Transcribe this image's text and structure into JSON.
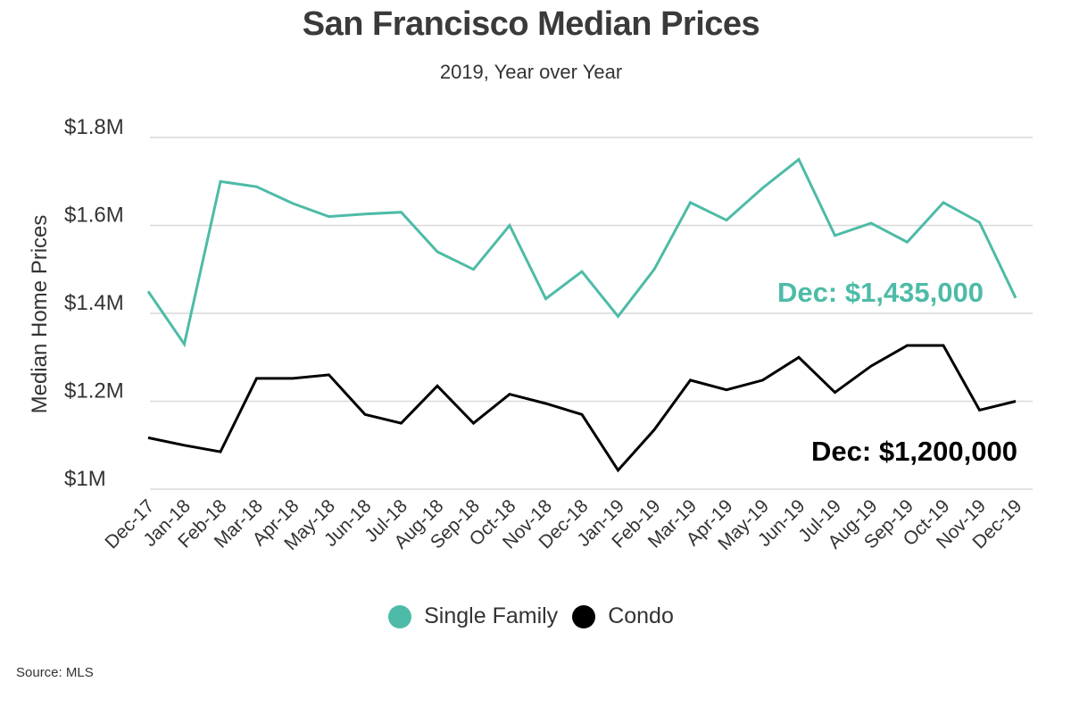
{
  "header": {
    "title": "San Francisco Median Prices",
    "subtitle": "2019, Year over Year"
  },
  "source": "Source:  MLS",
  "colors": {
    "single_family": "#4dbba7",
    "condo": "#000000",
    "grid": "#d9d9d9",
    "text": "#333333"
  },
  "chart_data": {
    "type": "line",
    "title": "San Francisco Median Prices",
    "subtitle": "2019, Year over Year",
    "xlabel": "",
    "ylabel": "Median Home Prices",
    "ylim": [
      1000000,
      1800000
    ],
    "yticks": [
      1000000,
      1200000,
      1400000,
      1600000,
      1800000
    ],
    "ytick_labels": [
      "$1M",
      "$1.2M",
      "$1.4M",
      "$1.6M",
      "$1.8M"
    ],
    "grid": true,
    "legend_position": "bottom",
    "categories": [
      "Dec-17",
      "Jan-18",
      "Feb-18",
      "Mar-18",
      "Apr-18",
      "May-18",
      "Jun-18",
      "Jul-18",
      "Aug-18",
      "Sep-18",
      "Oct-18",
      "Nov-18",
      "Dec-18",
      "Jan-19",
      "Feb-19",
      "Mar-19",
      "Apr-19",
      "May-19",
      "Jun-19",
      "Jul-19",
      "Aug-19",
      "Sep-19",
      "Oct-19",
      "Nov-19",
      "Dec-19"
    ],
    "series": [
      {
        "name": "Single Family",
        "color": "#4dbba7",
        "values": [
          1450000,
          1330000,
          1700000,
          1688000,
          1650000,
          1620000,
          1626000,
          1630000,
          1540000,
          1500000,
          1600000,
          1433000,
          1495000,
          1393000,
          1500000,
          1652000,
          1612000,
          1685000,
          1750000,
          1577000,
          1605000,
          1562000,
          1652000,
          1607000,
          1435000
        ]
      },
      {
        "name": "Condo",
        "color": "#000000",
        "values": [
          1117000,
          1100000,
          1085000,
          1252000,
          1252000,
          1260000,
          1170000,
          1150000,
          1235000,
          1150000,
          1216000,
          1195000,
          1170000,
          1043000,
          1135000,
          1248000,
          1226000,
          1248000,
          1300000,
          1220000,
          1280000,
          1327000,
          1327000,
          1180000,
          1200000
        ]
      }
    ],
    "annotations": [
      {
        "series": "Single Family",
        "text": "Dec: $1,435,000"
      },
      {
        "series": "Condo",
        "text": "Dec: $1,200,000"
      }
    ]
  }
}
